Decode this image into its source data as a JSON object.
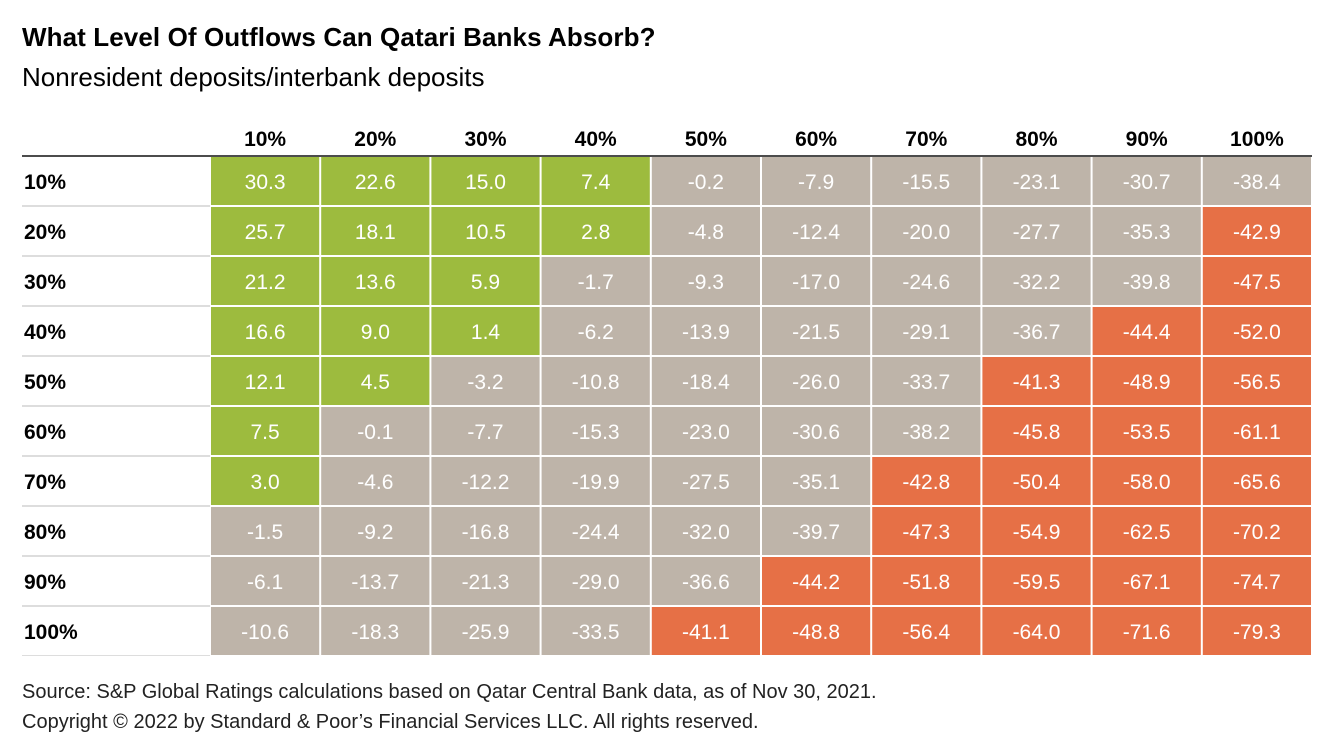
{
  "chart_data": {
    "type": "heatmap",
    "title": "What Level Of Outflows Can Qatari Banks Absorb?",
    "subtitle": "Nonresident deposits/interbank deposits",
    "columns": [
      "10%",
      "20%",
      "30%",
      "40%",
      "50%",
      "60%",
      "70%",
      "80%",
      "90%",
      "100%"
    ],
    "rows": [
      "10%",
      "20%",
      "30%",
      "40%",
      "50%",
      "60%",
      "70%",
      "80%",
      "90%",
      "100%"
    ],
    "values": [
      [
        30.3,
        22.6,
        15.0,
        7.4,
        -0.2,
        -7.9,
        -15.5,
        -23.1,
        -30.7,
        -38.4
      ],
      [
        25.7,
        18.1,
        10.5,
        2.8,
        -4.8,
        -12.4,
        -20.0,
        -27.7,
        -35.3,
        -42.9
      ],
      [
        21.2,
        13.6,
        5.9,
        -1.7,
        -9.3,
        -17.0,
        -24.6,
        -32.2,
        -39.8,
        -47.5
      ],
      [
        16.6,
        9.0,
        1.4,
        -6.2,
        -13.9,
        -21.5,
        -29.1,
        -36.7,
        -44.4,
        -52.0
      ],
      [
        12.1,
        4.5,
        -3.2,
        -10.8,
        -18.4,
        -26.0,
        -33.7,
        -41.3,
        -48.9,
        -56.5
      ],
      [
        7.5,
        -0.1,
        -7.7,
        -15.3,
        -23.0,
        -30.6,
        -38.2,
        -45.8,
        -53.5,
        -61.1
      ],
      [
        3.0,
        -4.6,
        -12.2,
        -19.9,
        -27.5,
        -35.1,
        -42.8,
        -50.4,
        -58.0,
        -65.6
      ],
      [
        -1.5,
        -9.2,
        -16.8,
        -24.4,
        -32.0,
        -39.7,
        -47.3,
        -54.9,
        -62.5,
        -70.2
      ],
      [
        -6.1,
        -13.7,
        -21.3,
        -29.0,
        -36.6,
        -44.2,
        -51.8,
        -59.5,
        -67.1,
        -74.7
      ],
      [
        -10.6,
        -18.3,
        -25.9,
        -33.5,
        -41.1,
        -48.8,
        -56.4,
        -64.0,
        -71.6,
        -79.3
      ]
    ],
    "thresholds": {
      "positive_above": 0,
      "severe_below": -40
    },
    "colors": {
      "positive": "#9dbb3e",
      "neutral": "#beb4a9",
      "severe": "#e67046",
      "cell_text": "#ffffff",
      "grid": "#ffffff",
      "rule": "#111111"
    }
  },
  "footer": {
    "source": "Source: S&P Global Ratings calculations based on Qatar Central Bank data, as of Nov 30, 2021.",
    "copyright": "Copyright © 2022 by Standard & Poor’s Financial Services LLC. All rights reserved."
  }
}
